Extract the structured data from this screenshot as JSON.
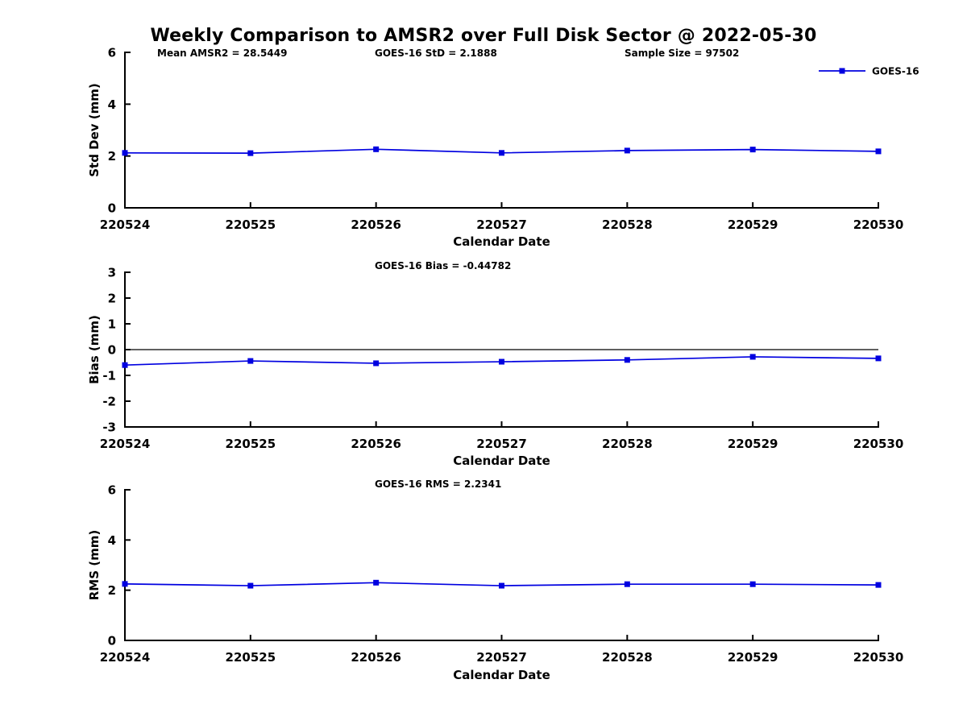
{
  "page": {
    "title": "Weekly Comparison to AMSR2 over Full Disk Sector @ 2022-05-30"
  },
  "colors": {
    "series": "#0000e0",
    "axis": "#000000"
  },
  "chart_data": [
    {
      "type": "line",
      "name": "std-dev-panel",
      "title": "",
      "annotations": [
        "Mean AMSR2 = 28.5449",
        "GOES-16 StD = 2.1888",
        "Sample Size = 97502"
      ],
      "legend": {
        "label": "GOES-16",
        "position": "top-right"
      },
      "categories": [
        "220524",
        "220525",
        "220526",
        "220527",
        "220528",
        "220529",
        "220530"
      ],
      "series": [
        {
          "name": "GOES-16",
          "values": [
            2.12,
            2.11,
            2.26,
            2.12,
            2.21,
            2.25,
            2.18
          ]
        }
      ],
      "xlabel": "Calendar Date",
      "ylabel": "Std Dev (mm)",
      "ylim": [
        0,
        6
      ],
      "yticks": [
        0,
        2,
        4,
        6
      ],
      "zero_line": false,
      "grid": false
    },
    {
      "type": "line",
      "name": "bias-panel",
      "title": "",
      "annotations": [
        "GOES-16 Bias  = -0.44782"
      ],
      "legend": null,
      "categories": [
        "220524",
        "220525",
        "220526",
        "220527",
        "220528",
        "220529",
        "220530"
      ],
      "series": [
        {
          "name": "GOES-16",
          "values": [
            -0.6,
            -0.44,
            -0.53,
            -0.47,
            -0.4,
            -0.28,
            -0.34
          ]
        }
      ],
      "xlabel": "Calendar Date",
      "ylabel": "Bias (mm)",
      "ylim": [
        -3,
        3
      ],
      "yticks": [
        -3,
        -2,
        -1,
        0,
        1,
        2,
        3
      ],
      "zero_line": true,
      "grid": false
    },
    {
      "type": "line",
      "name": "rms-panel",
      "title": "",
      "annotations": [
        "GOES-16 RMS = 2.2341"
      ],
      "legend": null,
      "categories": [
        "220524",
        "220525",
        "220526",
        "220527",
        "220528",
        "220529",
        "220530"
      ],
      "series": [
        {
          "name": "GOES-16",
          "values": [
            2.25,
            2.18,
            2.3,
            2.18,
            2.24,
            2.24,
            2.21
          ]
        }
      ],
      "xlabel": "Calendar Date",
      "ylabel": "RMS (mm)",
      "ylim": [
        0,
        6
      ],
      "yticks": [
        0,
        2,
        4,
        6
      ],
      "zero_line": false,
      "grid": false
    }
  ]
}
